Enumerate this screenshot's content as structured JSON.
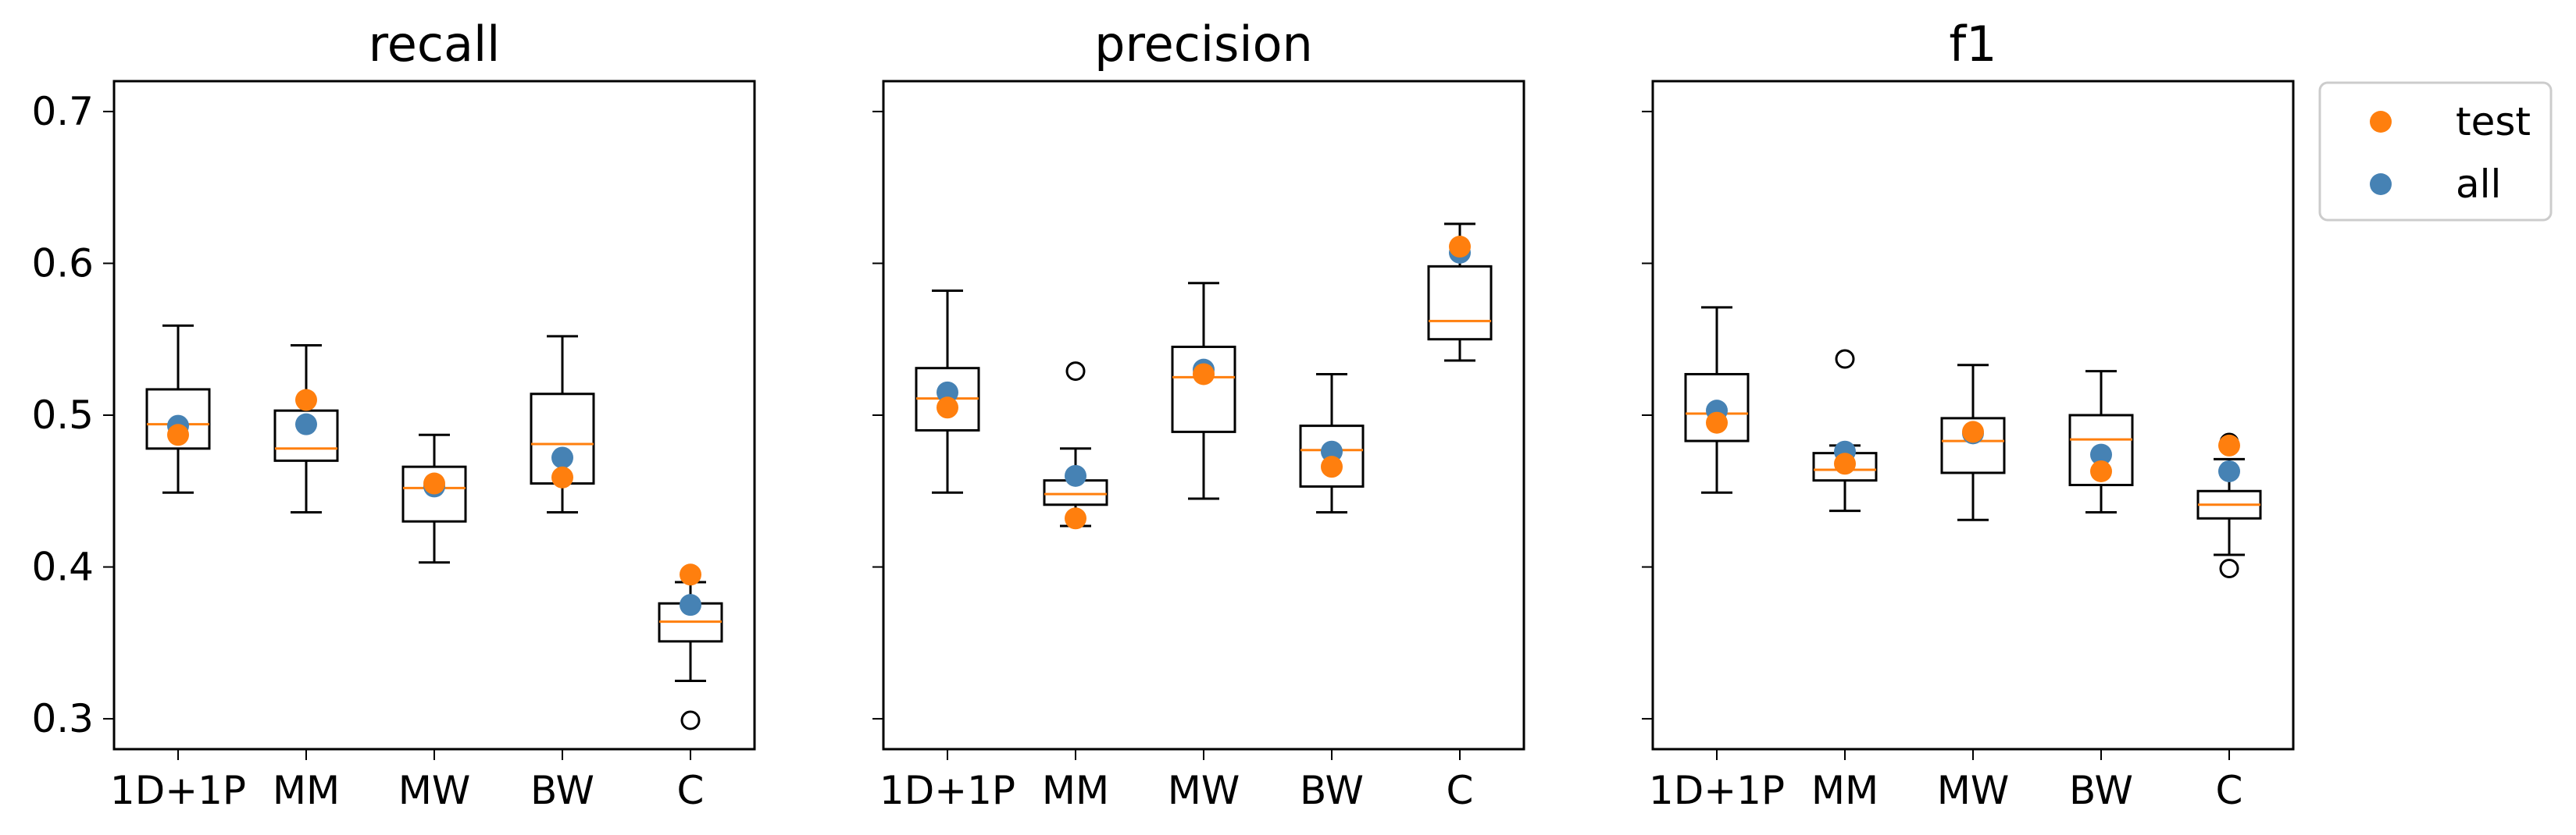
{
  "colors": {
    "test": "#ff7f0e",
    "all": "#4682b4",
    "median": "#ff7f0e",
    "box": "#000000"
  },
  "legend": {
    "placement": "outside-right",
    "items": [
      {
        "key": "test",
        "label": "test",
        "color": "#ff7f0e"
      },
      {
        "key": "all",
        "label": "all",
        "color": "#4682b4"
      }
    ]
  },
  "chart_data": [
    {
      "type": "box",
      "title": "recall",
      "categories": [
        "1D+1P",
        "MM",
        "MW",
        "BW",
        "C"
      ],
      "ylim": [
        0.28,
        0.72
      ],
      "yticks": [
        0.3,
        0.4,
        0.5,
        0.6,
        0.7
      ],
      "ytick_labels": [
        "0.3",
        "0.4",
        "0.5",
        "0.6",
        "0.7"
      ],
      "boxes": [
        {
          "whislo": 0.449,
          "q1": 0.478,
          "med": 0.494,
          "q3": 0.517,
          "whishi": 0.559,
          "fliers": []
        },
        {
          "whislo": 0.436,
          "q1": 0.47,
          "med": 0.478,
          "q3": 0.503,
          "whishi": 0.546,
          "fliers": []
        },
        {
          "whislo": 0.403,
          "q1": 0.43,
          "med": 0.452,
          "q3": 0.466,
          "whishi": 0.487,
          "fliers": []
        },
        {
          "whislo": 0.436,
          "q1": 0.455,
          "med": 0.481,
          "q3": 0.514,
          "whishi": 0.552,
          "fliers": []
        },
        {
          "whislo": 0.325,
          "q1": 0.351,
          "med": 0.364,
          "q3": 0.376,
          "whishi": 0.39,
          "fliers": [
            0.299
          ]
        }
      ],
      "series": [
        {
          "name": "test",
          "values": [
            0.487,
            0.51,
            0.455,
            0.459,
            0.395
          ]
        },
        {
          "name": "all",
          "values": [
            0.493,
            0.494,
            0.453,
            0.472,
            0.375
          ]
        }
      ]
    },
    {
      "type": "box",
      "title": "precision",
      "categories": [
        "1D+1P",
        "MM",
        "MW",
        "BW",
        "C"
      ],
      "ylim": [
        0.28,
        0.72
      ],
      "yticks": [
        0.3,
        0.4,
        0.5,
        0.6,
        0.7
      ],
      "ytick_labels": [],
      "boxes": [
        {
          "whislo": 0.449,
          "q1": 0.49,
          "med": 0.511,
          "q3": 0.531,
          "whishi": 0.582,
          "fliers": []
        },
        {
          "whislo": 0.427,
          "q1": 0.441,
          "med": 0.448,
          "q3": 0.457,
          "whishi": 0.478,
          "fliers": [
            0.529
          ]
        },
        {
          "whislo": 0.445,
          "q1": 0.489,
          "med": 0.525,
          "q3": 0.545,
          "whishi": 0.587,
          "fliers": []
        },
        {
          "whislo": 0.436,
          "q1": 0.453,
          "med": 0.477,
          "q3": 0.493,
          "whishi": 0.527,
          "fliers": []
        },
        {
          "whislo": 0.536,
          "q1": 0.55,
          "med": 0.562,
          "q3": 0.598,
          "whishi": 0.626,
          "fliers": []
        }
      ],
      "series": [
        {
          "name": "test",
          "values": [
            0.505,
            0.432,
            0.527,
            0.466,
            0.611
          ]
        },
        {
          "name": "all",
          "values": [
            0.515,
            0.46,
            0.53,
            0.476,
            0.607
          ]
        }
      ]
    },
    {
      "type": "box",
      "title": "f1",
      "categories": [
        "1D+1P",
        "MM",
        "MW",
        "BW",
        "C"
      ],
      "ylim": [
        0.28,
        0.72
      ],
      "yticks": [
        0.3,
        0.4,
        0.5,
        0.6,
        0.7
      ],
      "ytick_labels": [],
      "boxes": [
        {
          "whislo": 0.449,
          "q1": 0.483,
          "med": 0.501,
          "q3": 0.527,
          "whishi": 0.571,
          "fliers": []
        },
        {
          "whislo": 0.437,
          "q1": 0.457,
          "med": 0.464,
          "q3": 0.475,
          "whishi": 0.48,
          "fliers": [
            0.537
          ]
        },
        {
          "whislo": 0.431,
          "q1": 0.462,
          "med": 0.483,
          "q3": 0.498,
          "whishi": 0.533,
          "fliers": []
        },
        {
          "whislo": 0.436,
          "q1": 0.454,
          "med": 0.484,
          "q3": 0.5,
          "whishi": 0.529,
          "fliers": []
        },
        {
          "whislo": 0.408,
          "q1": 0.432,
          "med": 0.441,
          "q3": 0.45,
          "whishi": 0.471,
          "fliers": [
            0.399,
            0.482
          ]
        }
      ],
      "series": [
        {
          "name": "test",
          "values": [
            0.495,
            0.468,
            0.489,
            0.463,
            0.48
          ]
        },
        {
          "name": "all",
          "values": [
            0.503,
            0.476,
            0.488,
            0.474,
            0.463
          ]
        }
      ]
    }
  ]
}
